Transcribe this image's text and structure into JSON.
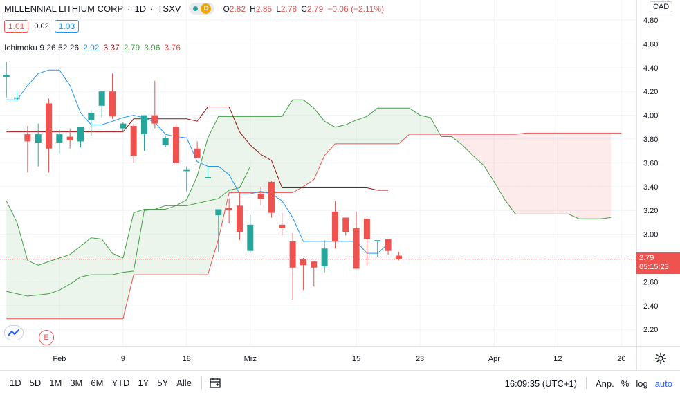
{
  "header": {
    "name": "MILLENNIAL LITHIUM CORP",
    "interval": "1D",
    "exchange": "TSXV",
    "d_badge": "D",
    "o_label": "O",
    "o_value": "2.82",
    "h_label": "H",
    "h_value": "2.85",
    "l_label": "L",
    "l_value": "2.78",
    "c_label": "C",
    "c_value": "2.79",
    "change": "−0.06 (−2.11%)"
  },
  "spread": {
    "bid": "1.01",
    "mid": "0.02",
    "ask": "1.03"
  },
  "ichimoku": {
    "label": "Ichimoku 9 26 52 26",
    "v1": "2.92",
    "v2": "3.37",
    "v3": "2.79",
    "v4": "3.96",
    "v5": "3.76"
  },
  "currency": "CAD",
  "price_tag": {
    "price": "2.79",
    "countdown": "05:15:23"
  },
  "e_badge": "E",
  "bottom": {
    "ranges": [
      "1D",
      "5D",
      "1M",
      "3M",
      "6M",
      "YTD",
      "1Y",
      "5Y",
      "Alle"
    ],
    "clock": "16:09:35 (UTC+1)",
    "adj": "Anp.",
    "percent": "%",
    "log": "log",
    "auto": "auto"
  },
  "colors": {
    "up": "#26a69a",
    "down": "#ef5350",
    "tenkan": "#2196f3",
    "kijun": "#991515",
    "span_a": "#43a047",
    "span_b": "#ef5350",
    "lagging": "#43a047"
  },
  "chart_data": {
    "type": "candlestick",
    "yticks": [
      "4.80",
      "4.60",
      "4.40",
      "4.20",
      "4.00",
      "3.80",
      "3.60",
      "3.40",
      "3.20",
      "3.00",
      "2.60",
      "2.40",
      "2.20"
    ],
    "ylim": [
      2.0,
      4.88
    ],
    "xticks": [
      {
        "label": "Feb",
        "bar": 5
      },
      {
        "label": "9",
        "bar": 11
      },
      {
        "label": "18",
        "bar": 17
      },
      {
        "label": "Mrz",
        "bar": 23
      },
      {
        "label": "15",
        "bar": 33
      },
      {
        "label": "23",
        "bar": 39
      },
      {
        "label": "Apr",
        "bar": 46
      },
      {
        "label": "12",
        "bar": 52
      },
      {
        "label": "20",
        "bar": 58
      }
    ],
    "last_price": 2.79,
    "candles": [
      {
        "o": 4.32,
        "h": 4.45,
        "l": 4.15,
        "c": 4.34
      },
      {
        "o": 4.14,
        "h": 4.2,
        "l": 4.11,
        "c": 4.15
      },
      {
        "o": 3.84,
        "h": 3.91,
        "l": 3.52,
        "c": 3.78
      },
      {
        "o": 3.77,
        "h": 3.93,
        "l": 3.57,
        "c": 3.84
      },
      {
        "o": 4.1,
        "h": 4.14,
        "l": 3.52,
        "c": 3.72
      },
      {
        "o": 3.77,
        "h": 3.88,
        "l": 3.68,
        "c": 3.84
      },
      {
        "o": 3.82,
        "h": 3.89,
        "l": 3.72,
        "c": 3.79
      },
      {
        "o": 3.78,
        "h": 3.89,
        "l": 3.73,
        "c": 3.9
      },
      {
        "o": 3.96,
        "h": 4.04,
        "l": 3.83,
        "c": 4.02
      },
      {
        "o": 4.08,
        "h": 4.2,
        "l": 3.98,
        "c": 4.2
      },
      {
        "o": 4.2,
        "h": 4.35,
        "l": 3.97,
        "c": 3.99
      },
      {
        "o": 3.89,
        "h": 3.94,
        "l": 3.87,
        "c": 3.93
      },
      {
        "o": 3.91,
        "h": 3.93,
        "l": 3.6,
        "c": 3.66
      },
      {
        "o": 3.84,
        "h": 4.0,
        "l": 3.7,
        "c": 4.0
      },
      {
        "o": 4.0,
        "h": 4.29,
        "l": 3.89,
        "c": 3.93
      },
      {
        "o": 3.75,
        "h": 3.83,
        "l": 3.73,
        "c": 3.81
      },
      {
        "o": 3.9,
        "h": 3.93,
        "l": 3.59,
        "c": 3.6
      },
      {
        "o": 3.53,
        "h": 3.57,
        "l": 3.36,
        "c": 3.54
      },
      {
        "o": 3.72,
        "h": 3.78,
        "l": 3.64,
        "c": 3.64
      },
      {
        "o": 3.48,
        "h": 3.58,
        "l": 3.47,
        "c": 3.48
      },
      {
        "o": 3.16,
        "h": 3.2,
        "l": 2.85,
        "c": 3.21
      },
      {
        "o": 3.22,
        "h": 3.3,
        "l": 3.09,
        "c": 3.2
      },
      {
        "o": 3.24,
        "h": 3.35,
        "l": 2.95,
        "c": 3.02
      },
      {
        "o": 2.86,
        "h": 3.16,
        "l": 2.84,
        "c": 3.08
      },
      {
        "o": 3.34,
        "h": 3.4,
        "l": 3.24,
        "c": 3.3
      },
      {
        "o": 3.44,
        "h": 3.45,
        "l": 3.14,
        "c": 3.18
      },
      {
        "o": 3.08,
        "h": 3.18,
        "l": 2.99,
        "c": 3.05
      },
      {
        "o": 2.94,
        "h": 3.01,
        "l": 2.45,
        "c": 2.72
      },
      {
        "o": 2.79,
        "h": 2.8,
        "l": 2.53,
        "c": 2.74
      },
      {
        "o": 2.77,
        "h": 2.77,
        "l": 2.56,
        "c": 2.72
      },
      {
        "o": 2.73,
        "h": 2.95,
        "l": 2.68,
        "c": 2.88
      },
      {
        "o": 3.19,
        "h": 3.28,
        "l": 2.88,
        "c": 2.94
      },
      {
        "o": 3.14,
        "h": 3.14,
        "l": 2.99,
        "c": 3.02
      },
      {
        "o": 3.05,
        "h": 3.19,
        "l": 2.71,
        "c": 2.71
      },
      {
        "o": 3.13,
        "h": 3.14,
        "l": 2.74,
        "c": 2.96
      },
      {
        "o": 2.94,
        "h": 2.94,
        "l": 2.81,
        "c": 2.95
      },
      {
        "o": 2.96,
        "h": 2.96,
        "l": 2.83,
        "c": 2.86
      },
      {
        "o": 2.82,
        "h": 2.85,
        "l": 2.78,
        "c": 2.79
      }
    ],
    "tenkan": {
      "start": 0,
      "values": [
        4.13,
        4.13,
        4.25,
        4.35,
        4.38,
        4.38,
        4.25,
        4.02,
        3.92,
        3.92,
        3.95,
        3.98,
        4.0,
        3.98,
        3.94,
        3.84,
        3.82,
        3.81,
        3.61,
        3.57,
        3.57,
        3.5,
        3.34,
        3.34,
        3.36,
        3.34,
        3.28,
        3.14,
        2.94,
        2.94,
        2.94,
        2.94,
        2.94,
        2.94,
        2.84,
        2.84,
        2.92
      ]
    },
    "kijun": {
      "start": 0,
      "values": [
        3.86,
        3.86,
        3.86,
        3.86,
        3.86,
        3.86,
        3.86,
        3.86,
        3.86,
        3.86,
        3.86,
        3.86,
        3.97,
        3.97,
        3.97,
        3.97,
        3.97,
        3.97,
        3.95,
        4.07,
        4.07,
        4.07,
        3.86,
        3.75,
        3.67,
        3.62,
        3.39,
        3.39,
        3.39,
        3.39,
        3.39,
        3.39,
        3.39,
        3.39,
        3.39,
        3.37,
        3.37
      ]
    },
    "span_a": {
      "start": 0,
      "values": [
        3.28,
        3.1,
        2.78,
        2.74,
        2.77,
        2.8,
        2.83,
        2.9,
        2.97,
        2.96,
        2.84,
        2.8,
        3.18,
        3.21,
        3.21,
        3.21,
        3.24,
        3.29,
        3.49,
        3.81,
        3.99,
        3.99,
        3.99,
        3.99,
        3.99,
        3.99,
        3.99,
        4.13,
        4.13,
        4.06,
        3.95,
        3.9,
        3.92,
        3.96,
        3.99,
        4.06,
        4.06,
        4.06,
        4.06,
        4.0,
        3.98,
        3.82,
        3.82,
        3.75,
        3.66,
        3.58,
        3.44,
        3.29,
        3.17,
        3.17,
        3.17,
        3.17,
        3.17,
        3.17,
        3.13,
        3.13,
        3.13,
        3.14
      ]
    },
    "span_b": {
      "start": 0,
      "values": [
        2.29,
        2.29,
        2.29,
        2.29,
        2.29,
        2.29,
        2.29,
        2.29,
        2.29,
        2.29,
        2.29,
        2.29,
        2.66,
        2.66,
        2.66,
        2.66,
        2.66,
        2.66,
        2.66,
        2.66,
        2.96,
        3.35,
        3.35,
        3.35,
        3.35,
        3.35,
        3.35,
        3.35,
        3.4,
        3.46,
        3.66,
        3.76,
        3.76,
        3.76,
        3.76,
        3.76,
        3.76,
        3.76,
        3.84,
        3.84,
        3.84,
        3.84,
        3.84,
        3.84,
        3.84,
        3.84,
        3.84,
        3.84,
        3.84,
        3.85,
        3.85,
        3.85,
        3.85,
        3.85,
        3.85,
        3.85,
        3.85,
        3.85,
        3.85
      ]
    },
    "lagging": {
      "start": 0,
      "values": [
        2.52,
        2.5,
        2.48,
        2.49,
        2.5,
        2.53,
        2.58,
        2.64,
        2.66,
        2.66,
        2.66,
        2.68,
        2.69,
        3.2,
        3.21,
        3.24,
        3.24,
        3.24,
        3.26,
        3.28,
        3.3,
        3.37,
        3.39,
        3.57
      ]
    }
  }
}
